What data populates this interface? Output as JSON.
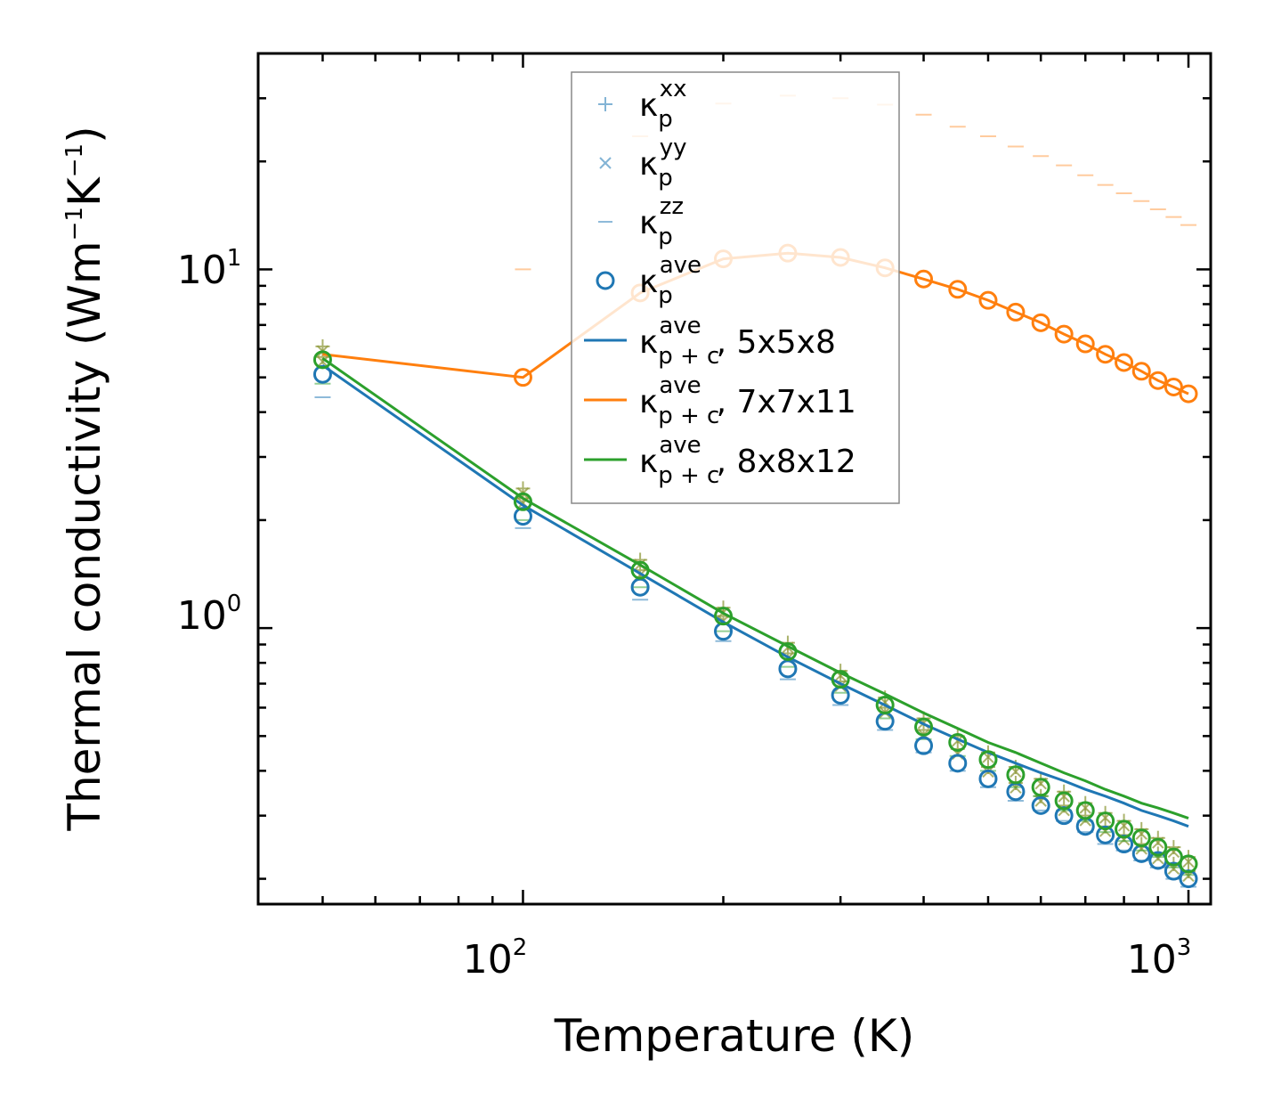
{
  "chart_data": {
    "type": "scatter",
    "title": "",
    "xlabel": "Temperature (K)",
    "ylabel": "Thermal conductivity (Wm",
    "ylabel_parts": [
      "Thermal conductivity (Wm",
      "−1",
      "K",
      "−1",
      ")"
    ],
    "xscale": "log",
    "yscale": "log",
    "xlim": [
      40,
      1080
    ],
    "ylim": [
      0.17,
      40
    ],
    "x_ticks": [
      {
        "base": "10",
        "exp": "2",
        "value": 100
      },
      {
        "base": "10",
        "exp": "3",
        "value": 1000
      }
    ],
    "y_ticks": [
      {
        "base": "10",
        "exp": "0",
        "value": 1
      },
      {
        "base": "10",
        "exp": "1",
        "value": 10
      }
    ],
    "x": [
      50,
      100,
      150,
      200,
      250,
      300,
      350,
      400,
      450,
      500,
      550,
      600,
      650,
      700,
      750,
      800,
      850,
      900,
      950,
      1000
    ],
    "colors": {
      "blue": "#1f77b4",
      "orange": "#ff7f0e",
      "green": "#2ca02c",
      "olive": "#8f9a3c"
    },
    "legend": [
      {
        "symbol": "+",
        "base": "κ",
        "sub": "p",
        "sup": "xx",
        "suffix": ""
      },
      {
        "symbol": "x",
        "base": "κ",
        "sub": "p",
        "sup": "yy",
        "suffix": ""
      },
      {
        "symbol": "-",
        "base": "κ",
        "sub": "p",
        "sup": "zz",
        "suffix": ""
      },
      {
        "symbol": "o",
        "base": "κ",
        "sub": "p",
        "sup": "ave",
        "suffix": ""
      },
      {
        "symbol": "line-blue",
        "base": "κ",
        "sub": "p + c",
        "sup": "ave",
        "suffix": ", 5x5x8"
      },
      {
        "symbol": "line-orange",
        "base": "κ",
        "sub": "p + c",
        "sup": "ave",
        "suffix": ", 7x7x11"
      },
      {
        "symbol": "line-green",
        "base": "κ",
        "sub": "p + c",
        "sup": "ave",
        "suffix": ", 8x8x12"
      }
    ],
    "series": [
      {
        "name": "5x5x8",
        "color": "#1f77b4",
        "kp_ave": [
          5.1,
          2.05,
          1.3,
          0.98,
          0.77,
          0.65,
          0.55,
          0.47,
          0.42,
          0.38,
          0.35,
          0.32,
          0.3,
          0.28,
          0.265,
          0.25,
          0.235,
          0.225,
          0.21,
          0.2
        ],
        "kp_xx": [
          5.7,
          2.3,
          1.45,
          1.08,
          0.85,
          0.71,
          0.6,
          0.52,
          0.46,
          0.41,
          0.37,
          0.34,
          0.32,
          0.3,
          0.28,
          0.265,
          0.25,
          0.235,
          0.22,
          0.21
        ],
        "kp_zz": [
          4.4,
          1.9,
          1.2,
          0.92,
          0.72,
          0.61,
          0.52,
          0.45,
          0.4,
          0.36,
          0.33,
          0.31,
          0.29,
          0.27,
          0.25,
          0.24,
          0.225,
          0.215,
          0.2,
          0.19
        ],
        "kpc_ave": [
          5.4,
          2.2,
          1.42,
          1.04,
          0.83,
          0.7,
          0.61,
          0.54,
          0.49,
          0.45,
          0.42,
          0.395,
          0.375,
          0.355,
          0.34,
          0.325,
          0.31,
          0.3,
          0.29,
          0.28
        ]
      },
      {
        "name": "7x7x11",
        "color": "#ff7f0e",
        "kp_ave": [
          null,
          5.0,
          8.6,
          10.7,
          11.1,
          10.8,
          10.1,
          9.4,
          8.8,
          8.2,
          7.6,
          7.1,
          6.6,
          6.2,
          5.8,
          5.5,
          5.2,
          4.9,
          4.7,
          4.5
        ],
        "kp_zz": [
          null,
          10.0,
          23.5,
          29.0,
          30.5,
          30.0,
          28.8,
          27.0,
          25.0,
          23.5,
          22.0,
          20.7,
          19.5,
          18.3,
          17.2,
          16.3,
          15.5,
          14.7,
          14.0,
          13.3
        ],
        "kpc_ave": [
          5.8,
          5.0,
          8.6,
          10.7,
          11.1,
          10.8,
          10.1,
          9.4,
          8.8,
          8.2,
          7.6,
          7.1,
          6.6,
          6.2,
          5.8,
          5.5,
          5.2,
          4.9,
          4.7,
          4.5
        ]
      },
      {
        "name": "8x8x12",
        "color": "#2ca02c",
        "kp_ave": [
          5.6,
          2.25,
          1.45,
          1.08,
          0.86,
          0.72,
          0.61,
          0.53,
          0.48,
          0.43,
          0.39,
          0.36,
          0.33,
          0.31,
          0.29,
          0.275,
          0.26,
          0.245,
          0.23,
          0.22
        ],
        "kp_xx": [
          6.1,
          2.45,
          1.55,
          1.14,
          0.91,
          0.76,
          0.64,
          0.56,
          0.5,
          0.45,
          0.41,
          0.38,
          0.35,
          0.325,
          0.305,
          0.29,
          0.275,
          0.26,
          0.245,
          0.23
        ],
        "kp_zz": [
          4.8,
          2.0,
          1.3,
          0.98,
          0.78,
          0.66,
          0.56,
          0.49,
          0.44,
          0.4,
          0.36,
          0.34,
          0.31,
          0.29,
          0.27,
          0.255,
          0.24,
          0.23,
          0.215,
          0.205
        ],
        "kpc_ave": [
          5.65,
          2.3,
          1.5,
          1.1,
          0.89,
          0.75,
          0.655,
          0.58,
          0.525,
          0.48,
          0.45,
          0.42,
          0.395,
          0.375,
          0.355,
          0.34,
          0.325,
          0.315,
          0.305,
          0.295
        ]
      }
    ]
  }
}
